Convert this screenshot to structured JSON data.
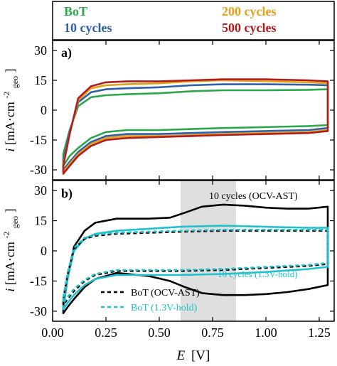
{
  "chart_data": [
    {
      "panel": "a)",
      "type": "line",
      "ylabel": "i [mA·cm⁻² geo]",
      "ylabel_main": "i [mA·cm",
      "ylabel_sup": "-2",
      "ylabel_sub": "geo",
      "ylabel_close": "]",
      "xlim": [
        0.0,
        1.32
      ],
      "ylim": [
        -35,
        35
      ],
      "yticks": [
        "-30",
        "-15",
        "0",
        "15",
        "30"
      ],
      "ytick_values": [
        -30,
        -15,
        0,
        15,
        30
      ],
      "legend": [
        {
          "name": "BoT",
          "color": "#2aa84a"
        },
        {
          "name": "10 cycles",
          "color": "#2e5fa8"
        },
        {
          "name": "200 cycles",
          "color": "#e3a21a"
        },
        {
          "name": "500 cycles",
          "color": "#b01d1d"
        }
      ],
      "series": [
        {
          "name": "BoT",
          "color": "#2aa84a",
          "style": "solid",
          "x_forward": [
            0.05,
            0.08,
            0.12,
            0.18,
            0.25,
            0.35,
            0.5,
            0.65,
            0.8,
            1.0,
            1.2,
            1.29
          ],
          "anodic": [
            -22,
            -10,
            2,
            6.5,
            7.5,
            8,
            8.5,
            9.5,
            10,
            10,
            10.2,
            10.5
          ],
          "cathodic": [
            -28,
            -23,
            -19,
            -14,
            -11,
            -10,
            -10,
            -9.5,
            -9,
            -8.5,
            -8,
            -7.5
          ]
        },
        {
          "name": "10 cycles",
          "color": "#2e5fa8",
          "style": "solid",
          "x_forward": [
            0.05,
            0.08,
            0.12,
            0.18,
            0.25,
            0.35,
            0.5,
            0.65,
            0.8,
            1.0,
            1.2,
            1.29
          ],
          "anodic": [
            -25,
            -11,
            4,
            9,
            10.5,
            11,
            11.5,
            12.5,
            13,
            13,
            12.8,
            12.5
          ],
          "cathodic": [
            -30,
            -26,
            -21,
            -16,
            -13,
            -12,
            -12,
            -11.5,
            -11,
            -10.5,
            -10,
            -9
          ]
        },
        {
          "name": "200 cycles",
          "color": "#e3a21a",
          "style": "solid",
          "x_forward": [
            0.05,
            0.08,
            0.12,
            0.18,
            0.25,
            0.35,
            0.5,
            0.65,
            0.8,
            1.0,
            1.2,
            1.29
          ],
          "anodic": [
            -27,
            -12,
            5,
            11,
            12.5,
            13,
            13.5,
            14.5,
            15,
            14.5,
            14,
            13.5
          ],
          "cathodic": [
            -31,
            -27,
            -22,
            -17,
            -14,
            -13,
            -13,
            -12.5,
            -12,
            -11.5,
            -11,
            -10
          ]
        },
        {
          "name": "500 cycles",
          "color": "#b01d1d",
          "style": "solid",
          "x_forward": [
            0.05,
            0.08,
            0.12,
            0.18,
            0.25,
            0.35,
            0.5,
            0.65,
            0.8,
            1.0,
            1.2,
            1.29
          ],
          "anodic": [
            -28,
            -12,
            6,
            12,
            14,
            14.5,
            14.5,
            15,
            15.5,
            15.5,
            15,
            14.5
          ],
          "cathodic": [
            -32,
            -28,
            -23,
            -18,
            -15,
            -14,
            -13.5,
            -13,
            -12.5,
            -12,
            -11.5,
            -10.5
          ]
        }
      ]
    },
    {
      "panel": "b)",
      "type": "line",
      "xlabel": "E [V]",
      "xlabel_italic": "E",
      "xlabel_unit": "[V]",
      "ylabel": "i [mA·cm⁻² geo]",
      "ylabel_main": "i [mA·cm",
      "ylabel_sup": "-2",
      "ylabel_sub": "geo",
      "ylabel_close": "]",
      "xlim": [
        0.0,
        1.32
      ],
      "ylim": [
        -35,
        35
      ],
      "xticks": [
        "0.00",
        "0.25",
        "0.50",
        "0.75",
        "1.00",
        "1.25"
      ],
      "xtick_values": [
        0.0,
        0.25,
        0.5,
        0.75,
        1.0,
        1.25
      ],
      "yticks": [
        "-30",
        "-15",
        "0",
        "15",
        "30"
      ],
      "ytick_values": [
        -30,
        -15,
        0,
        15,
        30
      ],
      "shaded_region": [
        0.6,
        0.86
      ],
      "annotations": [
        {
          "text": "10 cycles (OCV-AST)",
          "color": "#000000",
          "x": 0.75,
          "y": 25
        },
        {
          "text": "10 cycles (1.3V-hold)",
          "color": "#1fc1cc",
          "x": 0.75,
          "y": -20
        }
      ],
      "legend": [
        {
          "name": "BoT (OCV-AST)",
          "color": "#000000",
          "style": "dashed"
        },
        {
          "name": "BoT (1.3V-hold)",
          "color": "#1fc1cc",
          "style": "dashed"
        }
      ],
      "series": [
        {
          "name": "10 cycles (OCV-AST)",
          "color": "#000000",
          "style": "solid",
          "x_forward": [
            0.05,
            0.07,
            0.1,
            0.15,
            0.2,
            0.3,
            0.45,
            0.55,
            0.62,
            0.7,
            0.8,
            0.9,
            1.0,
            1.1,
            1.2,
            1.29
          ],
          "anodic": [
            -28,
            -14,
            2,
            10,
            14,
            16,
            16,
            16.5,
            19,
            22,
            23,
            22.5,
            21.5,
            21,
            21,
            22
          ],
          "cathodic": [
            -31,
            -28,
            -24,
            -18,
            -14,
            -11,
            -12.5,
            -15,
            -18,
            -21,
            -22,
            -22,
            -21.5,
            -20.5,
            -19,
            -17
          ]
        },
        {
          "name": "10 cycles (1.3V-hold)",
          "color": "#1fc1cc",
          "style": "solid",
          "x_forward": [
            0.05,
            0.07,
            0.1,
            0.15,
            0.2,
            0.3,
            0.45,
            0.6,
            0.8,
            1.0,
            1.2,
            1.29
          ],
          "anodic": [
            -27,
            -14,
            0,
            6,
            8.5,
            10,
            11,
            12,
            12.5,
            12,
            11.5,
            11.5
          ],
          "cathodic": [
            -29,
            -26,
            -22,
            -17,
            -14,
            -12,
            -12,
            -12,
            -11.5,
            -10.5,
            -9,
            -8
          ]
        },
        {
          "name": "BoT (OCV-AST)",
          "color": "#000000",
          "style": "dashed",
          "x_forward": [
            0.05,
            0.07,
            0.1,
            0.15,
            0.2,
            0.3,
            0.45,
            0.6,
            0.8,
            1.0,
            1.2,
            1.29
          ],
          "anodic": [
            -24,
            -12,
            1,
            6,
            7.5,
            8.5,
            9,
            9.5,
            10,
            10,
            10,
            10
          ],
          "cathodic": [
            -27,
            -24,
            -20,
            -15,
            -12,
            -10,
            -10,
            -10,
            -9.5,
            -8.5,
            -7.5,
            -6.5
          ]
        },
        {
          "name": "BoT (1.3V-hold)",
          "color": "#1fc1cc",
          "style": "dashed",
          "x_forward": [
            0.05,
            0.07,
            0.1,
            0.15,
            0.2,
            0.3,
            0.45,
            0.6,
            0.8,
            1.0,
            1.2,
            1.29
          ],
          "anodic": [
            -23,
            -11,
            1.5,
            6.5,
            8,
            9,
            9.5,
            10,
            10.5,
            10.5,
            10.5,
            10.5
          ],
          "cathodic": [
            -26,
            -23,
            -19,
            -14.5,
            -11.5,
            -9.5,
            -9.5,
            -9.5,
            -9,
            -8,
            -7,
            -6
          ]
        }
      ]
    }
  ]
}
